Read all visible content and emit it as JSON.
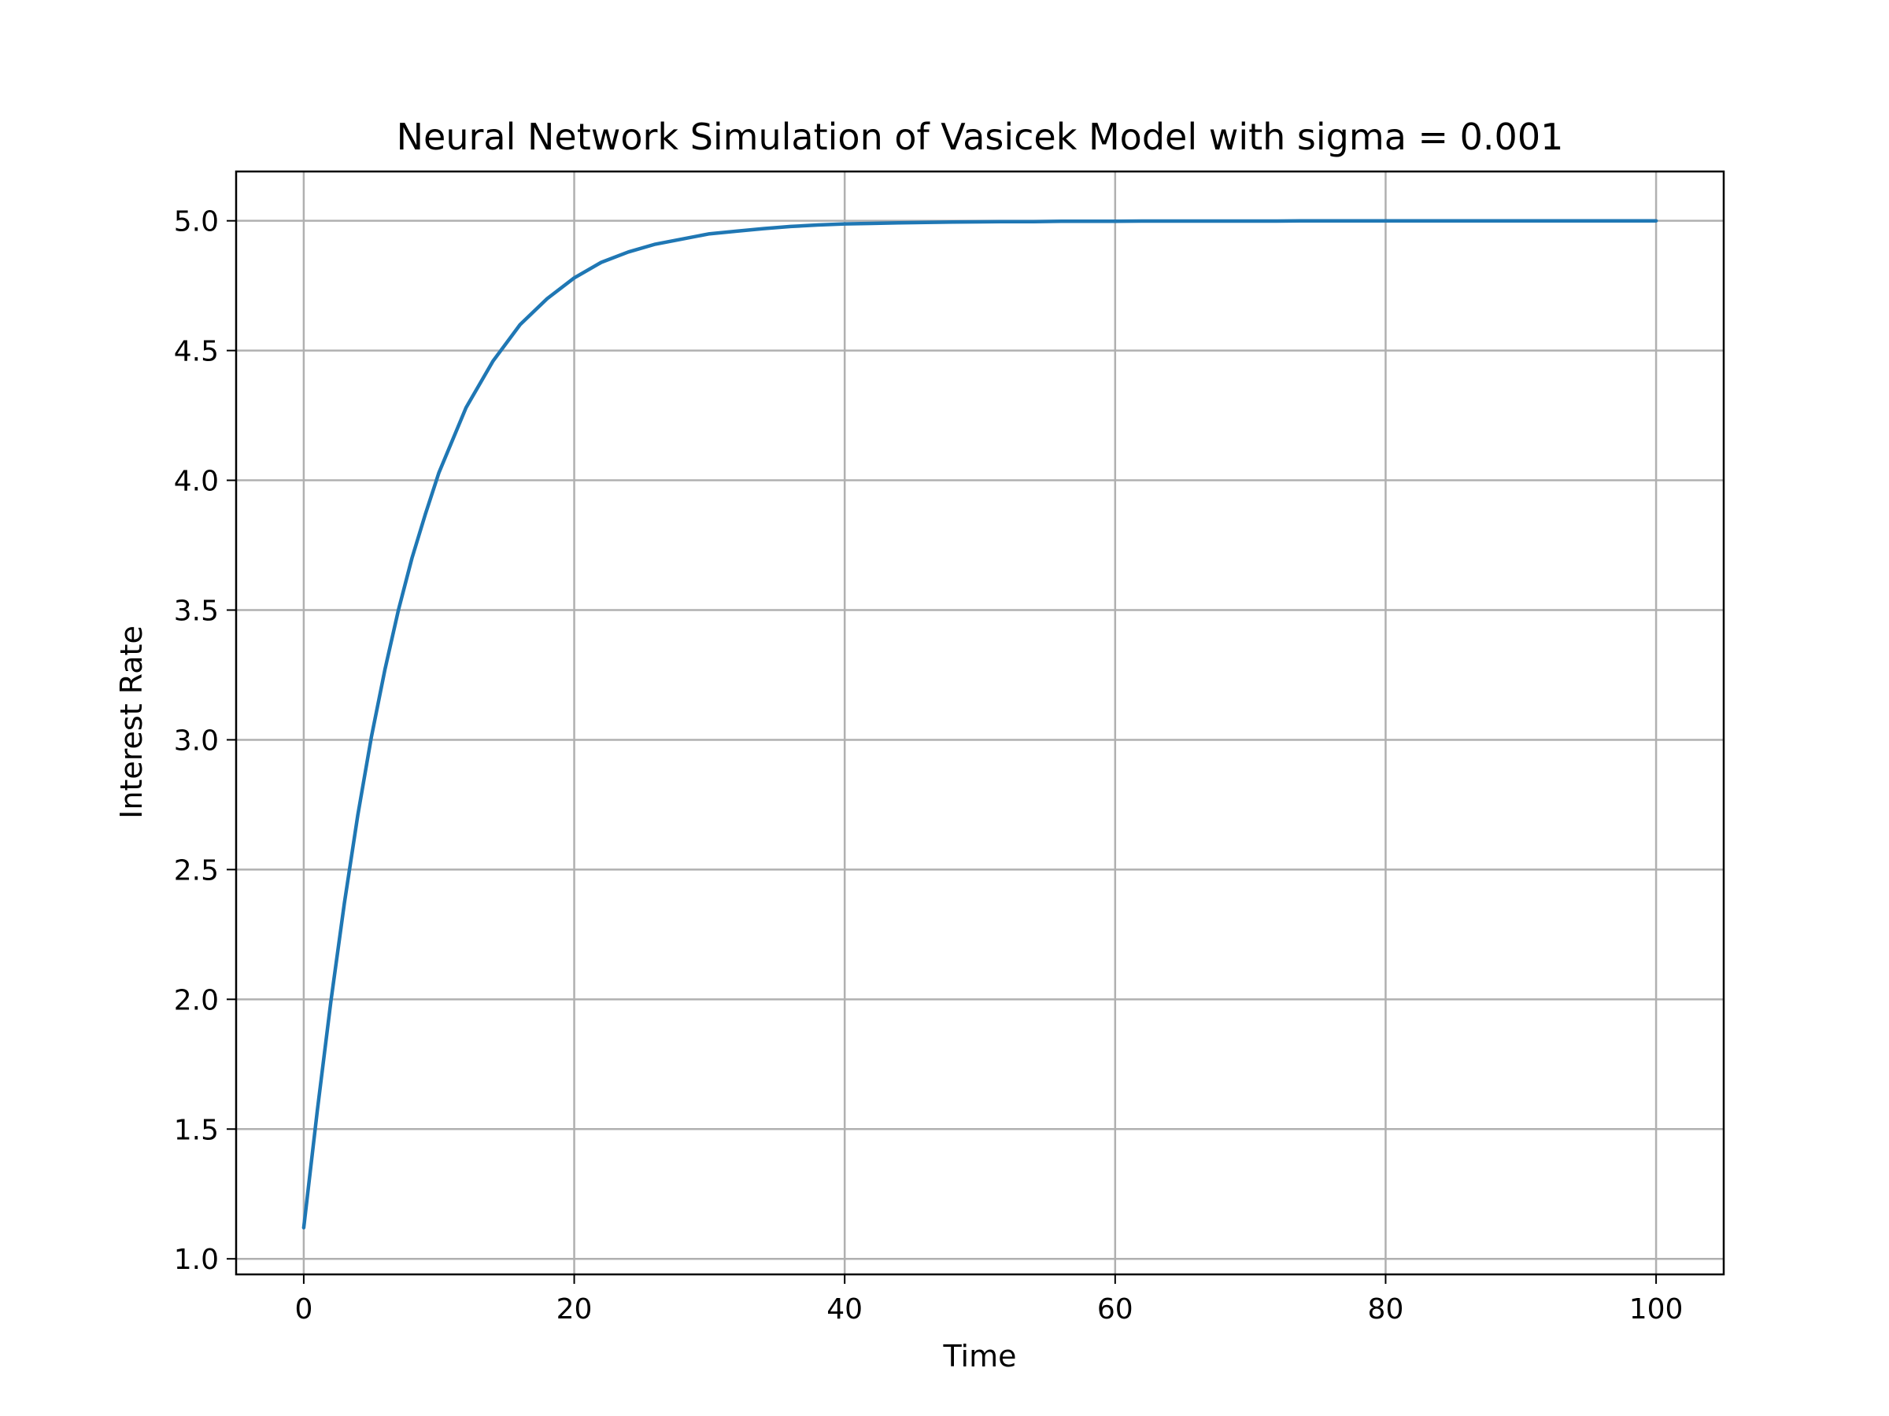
{
  "chart_data": {
    "type": "line",
    "title": "Neural Network Simulation of Vasicek Model with sigma = 0.001",
    "xlabel": "Time",
    "ylabel": "Interest Rate",
    "xlim": [
      -5,
      105
    ],
    "ylim": [
      0.94,
      5.19
    ],
    "xticks": [
      0,
      20,
      40,
      60,
      80,
      100
    ],
    "xtick_labels": [
      "0",
      "20",
      "40",
      "60",
      "80",
      "100"
    ],
    "yticks": [
      1.0,
      1.5,
      2.0,
      2.5,
      3.0,
      3.5,
      4.0,
      4.5,
      5.0
    ],
    "ytick_labels": [
      "1.0",
      "1.5",
      "2.0",
      "2.5",
      "3.0",
      "3.5",
      "4.0",
      "4.5",
      "5.0"
    ],
    "grid": true,
    "series_color": "#1f77b4",
    "series": [
      {
        "x": [
          0,
          1,
          2,
          3,
          4,
          5,
          6,
          7,
          8,
          9,
          10,
          12,
          14,
          16,
          18,
          20,
          22,
          24,
          26,
          28,
          30,
          32,
          34,
          36,
          38,
          40,
          42,
          44,
          46,
          48,
          50,
          52,
          54,
          56,
          58,
          60,
          62,
          64,
          66,
          68,
          70,
          72,
          74,
          76,
          78,
          80,
          82,
          84,
          86,
          88,
          90,
          92,
          94,
          96,
          98,
          100
        ],
        "y": [
          1.12,
          1.57,
          1.99,
          2.37,
          2.71,
          3.01,
          3.27,
          3.5,
          3.7,
          3.87,
          4.03,
          4.28,
          4.46,
          4.6,
          4.7,
          4.78,
          4.84,
          4.88,
          4.91,
          4.93,
          4.95,
          4.96,
          4.97,
          4.978,
          4.984,
          4.988,
          4.99,
          4.992,
          4.994,
          4.995,
          4.996,
          4.997,
          4.997,
          4.998,
          4.998,
          4.998,
          4.999,
          4.999,
          4.999,
          4.999,
          4.999,
          4.999,
          5.0,
          5.0,
          5.0,
          5.0,
          5.0,
          5.0,
          5.0,
          5.0,
          5.0,
          5.0,
          5.0,
          5.0,
          5.0,
          5.0
        ]
      }
    ]
  }
}
